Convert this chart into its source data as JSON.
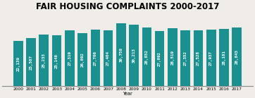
{
  "title": "FAIR HOUSING COMPLAINTS 2000-2017",
  "xlabel": "Year",
  "years": [
    "2000",
    "2001",
    "2002",
    "2003",
    "2004",
    "2005",
    "2006",
    "2007",
    "2008",
    "2009",
    "2010",
    "2011",
    "2012",
    "2013",
    "2014",
    "2015",
    "2016",
    "2017"
  ],
  "values": [
    22139,
    23507,
    25233,
    25148,
    27319,
    26092,
    27706,
    27404,
    30758,
    30213,
    28852,
    27092,
    28519,
    27352,
    27528,
    27937,
    28181,
    28843
  ],
  "bar_color": "#1a9090",
  "background_color": "#f0ede8",
  "title_fontsize": 8.5,
  "label_fontsize": 4.2,
  "tick_fontsize": 4.2,
  "label_color": "#ffffff",
  "ylim": [
    0,
    36000
  ]
}
